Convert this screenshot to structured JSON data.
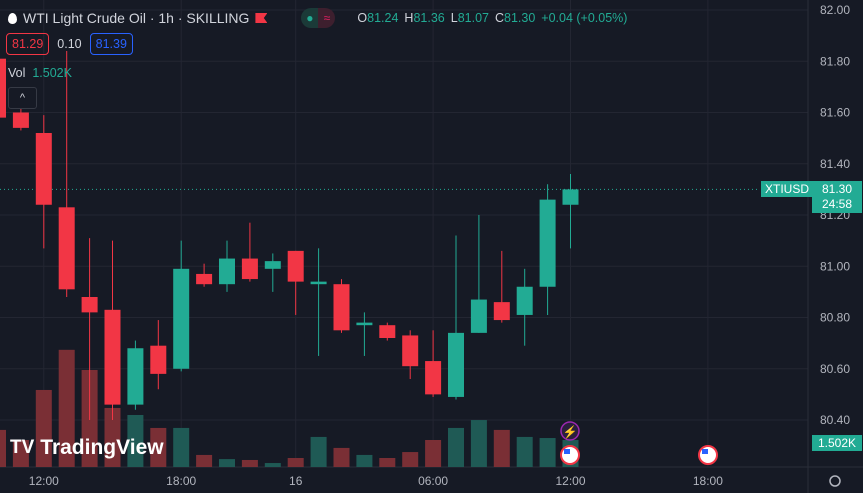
{
  "header": {
    "title": "WTI Light Crude Oil · 1h · SKILLING",
    "ohlc": {
      "o_label": "O",
      "o": "81.24",
      "h_label": "H",
      "h": "81.36",
      "l_label": "L",
      "l": "81.07",
      "c_label": "C",
      "c": "81.30",
      "change": "+0.04 (+0.05%)"
    }
  },
  "bid_ask": {
    "bid": "81.29",
    "spread": "0.10",
    "ask": "81.39"
  },
  "volume_label": {
    "label": "Vol",
    "value": "1.502K"
  },
  "collapse_icon": "^",
  "logo": "TradingView",
  "symbol_tag": "XTIUSD",
  "last_price": "81.30",
  "countdown": "24:58",
  "volume_tag": "1.502K",
  "colors": {
    "up": "#22ab94",
    "down": "#f23645",
    "bg": "#161a25"
  },
  "chart_data": {
    "type": "candlestick",
    "ylim": [
      80.3,
      82.0
    ],
    "yticks": [
      "82.00",
      "81.80",
      "81.60",
      "81.40",
      "81.20",
      "81.00",
      "80.80",
      "80.60",
      "80.40"
    ],
    "xticks": [
      {
        "i": 2,
        "label": "12:00"
      },
      {
        "i": 8,
        "label": "18:00"
      },
      {
        "i": 13,
        "label": "16"
      },
      {
        "i": 19,
        "label": "06:00"
      },
      {
        "i": 25,
        "label": "12:00"
      },
      {
        "i": 31,
        "label": "18:00"
      }
    ],
    "candles": [
      [
        81.81,
        81.84,
        81.56,
        81.58,
        2.06
      ],
      [
        81.6,
        81.64,
        81.53,
        81.54,
        1.5
      ],
      [
        81.52,
        81.59,
        81.07,
        81.24,
        4.28
      ],
      [
        81.23,
        81.84,
        80.88,
        80.91,
        6.51
      ],
      [
        80.88,
        81.11,
        80.4,
        80.82,
        5.39
      ],
      [
        80.83,
        81.1,
        80.4,
        80.46,
        3.28
      ],
      [
        80.46,
        80.71,
        80.44,
        80.68,
        2.89
      ],
      [
        80.69,
        80.79,
        80.52,
        80.58,
        2.17
      ],
      [
        80.6,
        81.1,
        80.59,
        80.99,
        2.17
      ],
      [
        80.97,
        81.01,
        80.92,
        80.93,
        0.67
      ],
      [
        80.93,
        81.1,
        80.9,
        81.03,
        0.44
      ],
      [
        81.03,
        81.17,
        80.94,
        80.95,
        0.39
      ],
      [
        80.99,
        81.05,
        80.9,
        81.02,
        0.22
      ],
      [
        81.06,
        81.06,
        80.81,
        80.94,
        0.5
      ],
      [
        80.93,
        81.07,
        80.65,
        80.94,
        1.67
      ],
      [
        80.93,
        80.95,
        80.74,
        80.75,
        1.06
      ],
      [
        80.77,
        80.82,
        80.65,
        80.78,
        0.67
      ],
      [
        80.77,
        80.78,
        80.71,
        80.72,
        0.5
      ],
      [
        80.73,
        80.75,
        80.56,
        80.61,
        0.83
      ],
      [
        80.63,
        80.75,
        80.49,
        80.5,
        1.5
      ],
      [
        80.49,
        81.12,
        80.48,
        80.74,
        2.17
      ],
      [
        80.74,
        81.2,
        80.74,
        80.87,
        2.61
      ],
      [
        80.86,
        81.06,
        80.78,
        80.79,
        2.06
      ],
      [
        80.81,
        80.99,
        80.69,
        80.92,
        1.67
      ],
      [
        80.92,
        81.32,
        80.81,
        81.26,
        1.61
      ],
      [
        81.24,
        81.36,
        81.07,
        81.3,
        1.502
      ]
    ],
    "candle_fields": [
      "open",
      "high",
      "low",
      "close",
      "volume_k"
    ]
  }
}
